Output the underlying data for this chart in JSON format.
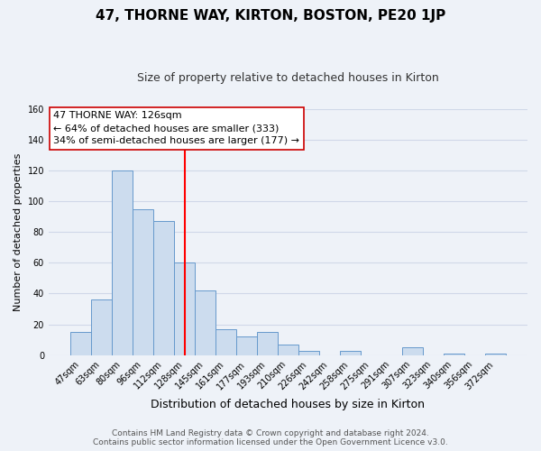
{
  "title": "47, THORNE WAY, KIRTON, BOSTON, PE20 1JP",
  "subtitle": "Size of property relative to detached houses in Kirton",
  "xlabel": "Distribution of detached houses by size in Kirton",
  "ylabel": "Number of detached properties",
  "bar_labels": [
    "47sqm",
    "63sqm",
    "80sqm",
    "96sqm",
    "112sqm",
    "128sqm",
    "145sqm",
    "161sqm",
    "177sqm",
    "193sqm",
    "210sqm",
    "226sqm",
    "242sqm",
    "258sqm",
    "275sqm",
    "291sqm",
    "307sqm",
    "323sqm",
    "340sqm",
    "356sqm",
    "372sqm"
  ],
  "bar_heights": [
    15,
    36,
    120,
    95,
    87,
    60,
    42,
    17,
    12,
    15,
    7,
    3,
    0,
    3,
    0,
    0,
    5,
    0,
    1,
    0,
    1
  ],
  "bar_color": "#ccdcee",
  "bar_edge_color": "#6699cc",
  "vline_color": "red",
  "vline_x_index": 5,
  "annotation_title": "47 THORNE WAY: 126sqm",
  "annotation_line1": "← 64% of detached houses are smaller (333)",
  "annotation_line2": "34% of semi-detached houses are larger (177) →",
  "annotation_box_color": "white",
  "annotation_box_edge": "#cc0000",
  "ylim": [
    0,
    160
  ],
  "yticks": [
    0,
    20,
    40,
    60,
    80,
    100,
    120,
    140,
    160
  ],
  "footer1": "Contains HM Land Registry data © Crown copyright and database right 2024.",
  "footer2": "Contains public sector information licensed under the Open Government Licence v3.0.",
  "grid_color": "#d0d8e8",
  "background_color": "#eef2f8",
  "title_fontsize": 11,
  "subtitle_fontsize": 9,
  "xlabel_fontsize": 9,
  "ylabel_fontsize": 8,
  "tick_fontsize": 7,
  "footer_fontsize": 6.5,
  "annotation_fontsize": 8
}
